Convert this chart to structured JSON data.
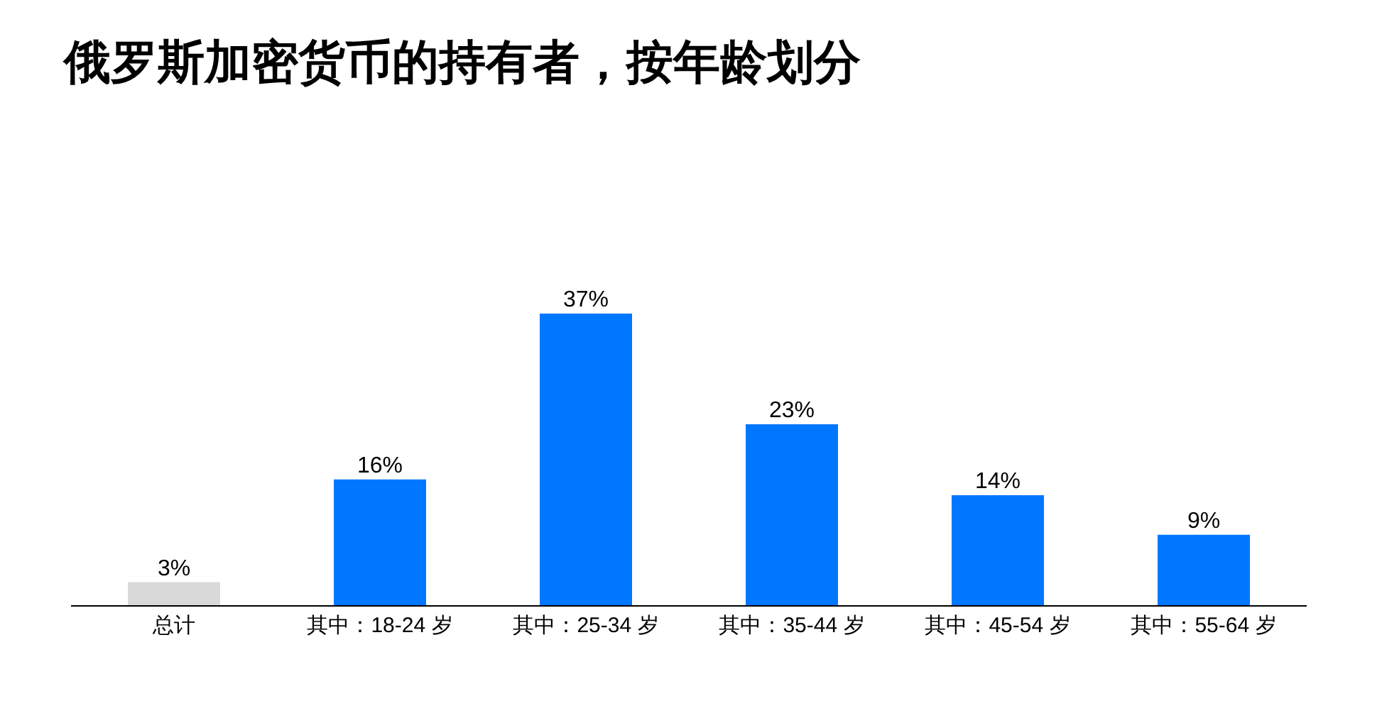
{
  "chart_data": {
    "type": "bar",
    "title": "俄罗斯加密货币的持有者，按年龄划分",
    "categories": [
      "总计",
      "其中：18-24 岁",
      "其中：25-34 岁",
      "其中：35-44 岁",
      "其中：45-54 岁",
      "其中：55-64 岁"
    ],
    "values": [
      3,
      16,
      37,
      23,
      14,
      9
    ],
    "colors": [
      "#d9d9d9",
      "#0077ff",
      "#0077ff",
      "#0077ff",
      "#0077ff",
      "#0077ff"
    ],
    "value_labels": [
      "3%",
      "16%",
      "37%",
      "23%",
      "14%",
      "9%"
    ],
    "grid": false,
    "legend": false
  }
}
